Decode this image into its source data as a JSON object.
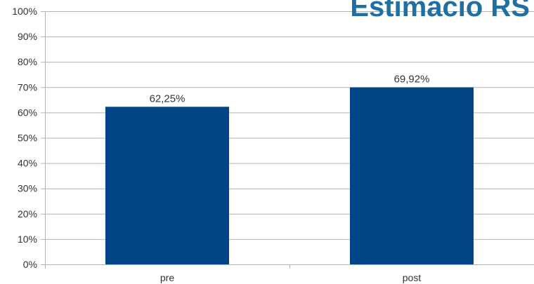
{
  "page": {
    "title": "Estimació RS"
  },
  "colors": {
    "bar": "#004586",
    "title": "#1f6fa3",
    "grid": "#b3b3b3",
    "text": "#333333"
  },
  "chart_data": {
    "type": "bar",
    "title": "",
    "xlabel": "",
    "ylabel": "",
    "categories": [
      "pre",
      "post"
    ],
    "values": [
      62.25,
      69.92
    ],
    "value_labels": [
      "62,25%",
      "69,92%"
    ],
    "ylim": [
      0,
      100
    ],
    "y_ticks": [
      0,
      10,
      20,
      30,
      40,
      50,
      60,
      70,
      80,
      90,
      100
    ],
    "y_tick_labels": [
      "0%",
      "10%",
      "20%",
      "30%",
      "40%",
      "50%",
      "60%",
      "70%",
      "80%",
      "90%",
      "100%"
    ],
    "grid": true,
    "legend": "none"
  }
}
